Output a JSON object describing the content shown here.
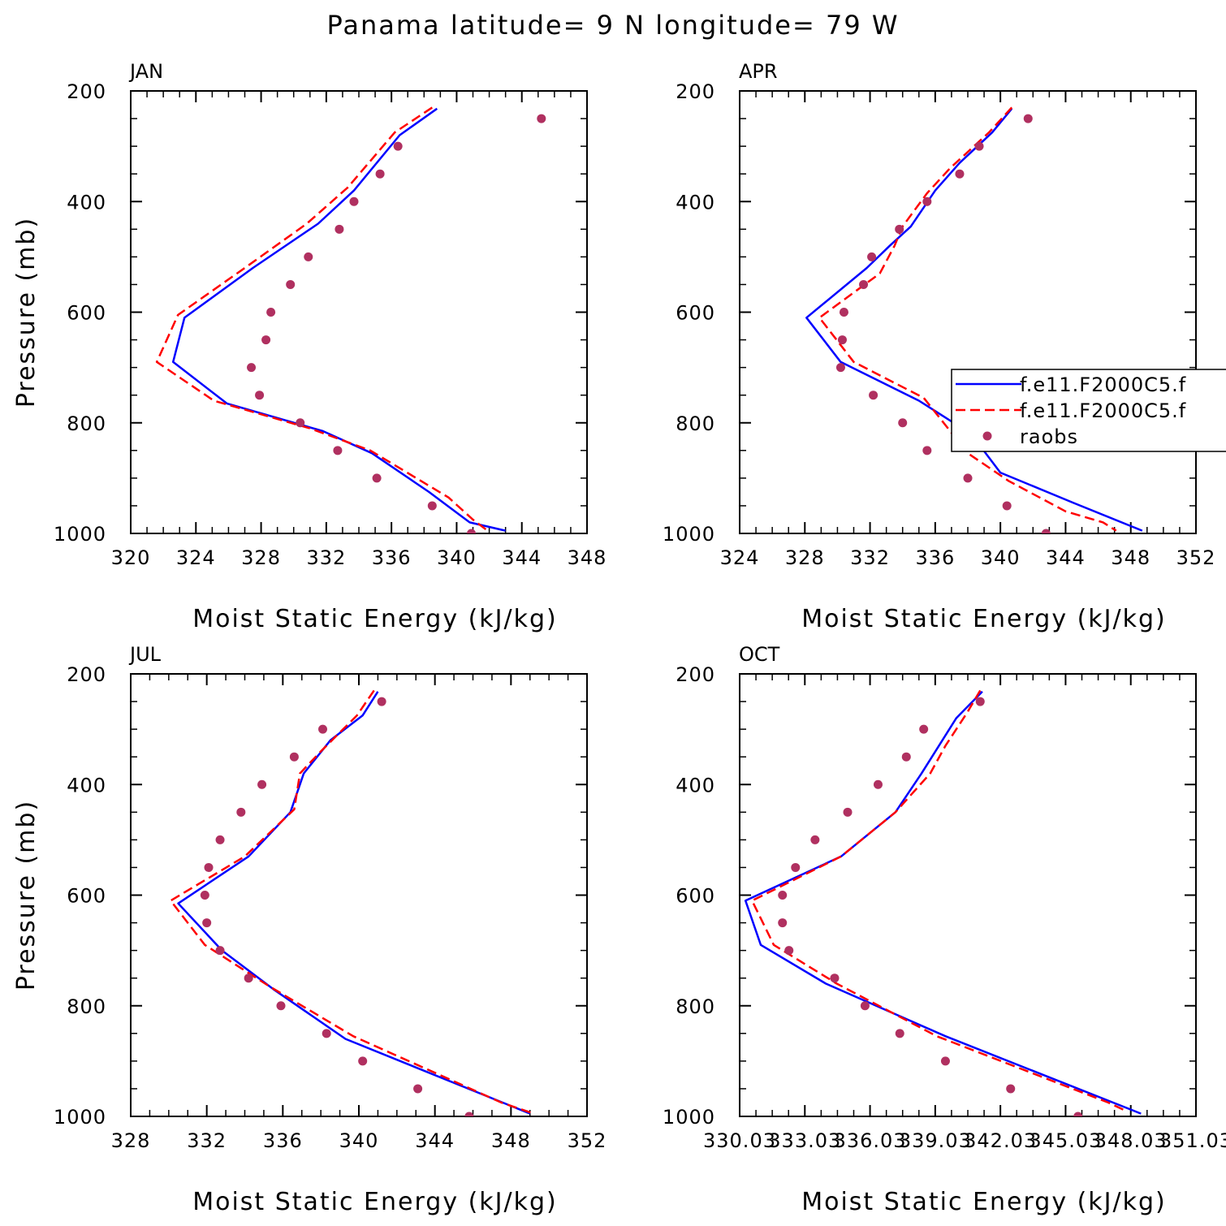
{
  "title": "Panama  latitude= 9 N longitude= 79 W",
  "legend": {
    "entries": [
      {
        "label": "f.e11.F2000C5.f",
        "color": "#0000ff",
        "style": "solid"
      },
      {
        "label": "f.e11.F2000C5.f",
        "color": "#ff0000",
        "style": "dashed"
      },
      {
        "label": "raobs",
        "color": "#b03060",
        "style": "marker"
      }
    ]
  },
  "chart_data": [
    {
      "type": "line",
      "panel": "JAN",
      "title": "JAN",
      "xlabel": "Moist Static Energy (kJ/kg)",
      "ylabel": "Pressure (mb)",
      "xlim": [
        320,
        348
      ],
      "ylim": [
        200,
        1000
      ],
      "y_inverted": true,
      "xticks": [
        "320",
        "324",
        "328",
        "332",
        "336",
        "340",
        "344",
        "348"
      ],
      "yticks": [
        "200",
        "400",
        "600",
        "800",
        "1000"
      ],
      "series": [
        {
          "name": "f.e11.F2000C5.f",
          "color": "#0000ff",
          "style": "solid",
          "x": [
            338.8,
            336.5,
            333.7,
            331.5,
            327.5,
            323.3,
            322.6,
            325.9,
            331.8,
            334.8,
            338.3,
            340.8,
            343.0
          ],
          "y": [
            232,
            280,
            380,
            440,
            520,
            610,
            690,
            765,
            815,
            855,
            925,
            980,
            995
          ]
        },
        {
          "name": "f.e11.F2000C5.f",
          "color": "#ff0000",
          "style": "dashed",
          "x": [
            338.5,
            336.2,
            333.3,
            330.8,
            327.0,
            322.9,
            321.6,
            325.1,
            331.0,
            334.7,
            339.5,
            341.0,
            341.9
          ],
          "y": [
            230,
            275,
            375,
            440,
            520,
            605,
            690,
            760,
            810,
            850,
            935,
            975,
            995
          ]
        },
        {
          "name": "raobs",
          "color": "#b03060",
          "style": "marker",
          "x": [
            345.2,
            336.4,
            335.3,
            333.7,
            332.8,
            330.9,
            329.8,
            328.6,
            328.3,
            327.4,
            327.9,
            330.4,
            332.7,
            335.1,
            338.5,
            340.9
          ],
          "y": [
            250,
            300,
            350,
            400,
            450,
            500,
            550,
            600,
            650,
            700,
            750,
            800,
            850,
            900,
            950,
            1000
          ]
        }
      ]
    },
    {
      "type": "line",
      "panel": "APR",
      "title": "APR",
      "xlabel": "Moist Static Energy (kJ/kg)",
      "ylabel": "",
      "xlim": [
        324,
        352
      ],
      "ylim": [
        200,
        1000
      ],
      "y_inverted": true,
      "xticks": [
        "324",
        "328",
        "332",
        "336",
        "340",
        "344",
        "348",
        "352"
      ],
      "yticks": [
        "200",
        "400",
        "600",
        "800",
        "1000"
      ],
      "series": [
        {
          "name": "f.e11.F2000C5.f",
          "color": "#0000ff",
          "style": "solid",
          "x": [
            340.7,
            339.5,
            337.5,
            336.0,
            334.5,
            333.2,
            331.8,
            328.1,
            330.2,
            335.0,
            338.2,
            340.0,
            344.5,
            348.7
          ],
          "y": [
            232,
            275,
            330,
            380,
            445,
            480,
            520,
            610,
            690,
            760,
            820,
            890,
            945,
            995
          ]
        },
        {
          "name": "f.e11.F2000C5.f",
          "color": "#ff0000",
          "style": "dashed",
          "x": [
            340.7,
            339.3,
            336.9,
            335.5,
            334.0,
            333.5,
            332.6,
            328.9,
            331.0,
            335.3,
            338.0,
            340.5,
            344.0,
            346.3,
            347.1
          ],
          "y": [
            230,
            275,
            340,
            385,
            445,
            480,
            530,
            610,
            690,
            755,
            855,
            905,
            960,
            980,
            995
          ]
        },
        {
          "name": "raobs",
          "color": "#b03060",
          "style": "marker",
          "x": [
            341.7,
            338.7,
            337.5,
            335.5,
            333.8,
            332.1,
            331.6,
            330.4,
            330.3,
            330.2,
            332.2,
            334.0,
            335.5,
            338.0,
            340.4,
            342.8
          ],
          "y": [
            250,
            300,
            350,
            400,
            450,
            500,
            550,
            600,
            650,
            700,
            750,
            800,
            850,
            900,
            950,
            1000
          ]
        }
      ]
    },
    {
      "type": "line",
      "panel": "JUL",
      "title": "JUL",
      "xlabel": "Moist Static Energy (kJ/kg)",
      "ylabel": "Pressure (mb)",
      "xlim": [
        328,
        352
      ],
      "ylim": [
        200,
        1000
      ],
      "y_inverted": true,
      "xticks": [
        "328",
        "332",
        "336",
        "340",
        "344",
        "348",
        "352"
      ],
      "yticks": [
        "200",
        "400",
        "600",
        "800",
        "1000"
      ],
      "series": [
        {
          "name": "f.e11.F2000C5.f",
          "color": "#0000ff",
          "style": "solid",
          "x": [
            341.0,
            340.2,
            338.5,
            337.1,
            336.4,
            334.2,
            330.5,
            332.8,
            335.5,
            339.3,
            349.0
          ],
          "y": [
            232,
            275,
            320,
            380,
            450,
            530,
            615,
            700,
            770,
            860,
            995
          ]
        },
        {
          "name": "f.e11.F2000C5.f",
          "color": "#ff0000",
          "style": "dashed",
          "x": [
            340.8,
            339.9,
            338.0,
            336.9,
            336.6,
            334.0,
            330.1,
            331.9,
            335.3,
            339.7,
            347.5,
            349.2
          ],
          "y": [
            230,
            275,
            340,
            380,
            445,
            530,
            610,
            690,
            765,
            855,
            975,
            995
          ]
        },
        {
          "name": "raobs",
          "color": "#b03060",
          "style": "marker",
          "x": [
            341.2,
            338.1,
            336.6,
            334.9,
            333.8,
            332.7,
            332.1,
            331.9,
            332.0,
            332.7,
            334.2,
            335.9,
            338.3,
            340.2,
            343.1,
            345.8
          ],
          "y": [
            250,
            300,
            350,
            400,
            450,
            500,
            550,
            600,
            650,
            700,
            750,
            800,
            850,
            900,
            950,
            1000
          ]
        }
      ]
    },
    {
      "type": "line",
      "panel": "OCT",
      "title": "OCT",
      "xlabel": "Moist Static Energy (kJ/kg)",
      "ylabel": "",
      "xlim": [
        330.03,
        351.03
      ],
      "ylim": [
        200,
        1000
      ],
      "y_inverted": true,
      "xticks": [
        "330.03",
        "333.03",
        "336.03",
        "339.03",
        "342.03",
        "345.03",
        "348.03",
        "351.03"
      ],
      "yticks": [
        "200",
        "400",
        "600",
        "800",
        "1000"
      ],
      "series": [
        {
          "name": "f.e11.F2000C5.f",
          "color": "#0000ff",
          "style": "solid",
          "x": [
            341.2,
            340.0,
            338.4,
            337.2,
            334.7,
            330.3,
            331.0,
            334.0,
            339.5,
            348.5
          ],
          "y": [
            232,
            280,
            380,
            450,
            530,
            610,
            690,
            760,
            855,
            995
          ]
        },
        {
          "name": "f.e11.F2000C5.f",
          "color": "#ff0000",
          "style": "dashed",
          "x": [
            341.1,
            340.5,
            339.5,
            338.8,
            337.2,
            334.7,
            330.6,
            331.6,
            334.5,
            339.1,
            347.0,
            347.8
          ],
          "y": [
            230,
            270,
            330,
            380,
            450,
            530,
            610,
            690,
            760,
            855,
            975,
            990
          ]
        },
        {
          "name": "raobs",
          "color": "#b03060",
          "style": "marker",
          "x": [
            341.1,
            338.5,
            337.7,
            336.4,
            335.0,
            333.5,
            332.6,
            332.0,
            332.0,
            332.3,
            334.4,
            335.8,
            337.4,
            339.5,
            342.5,
            345.6
          ],
          "y": [
            250,
            300,
            350,
            400,
            450,
            500,
            550,
            600,
            650,
            700,
            750,
            800,
            850,
            900,
            950,
            1000
          ]
        }
      ]
    }
  ]
}
